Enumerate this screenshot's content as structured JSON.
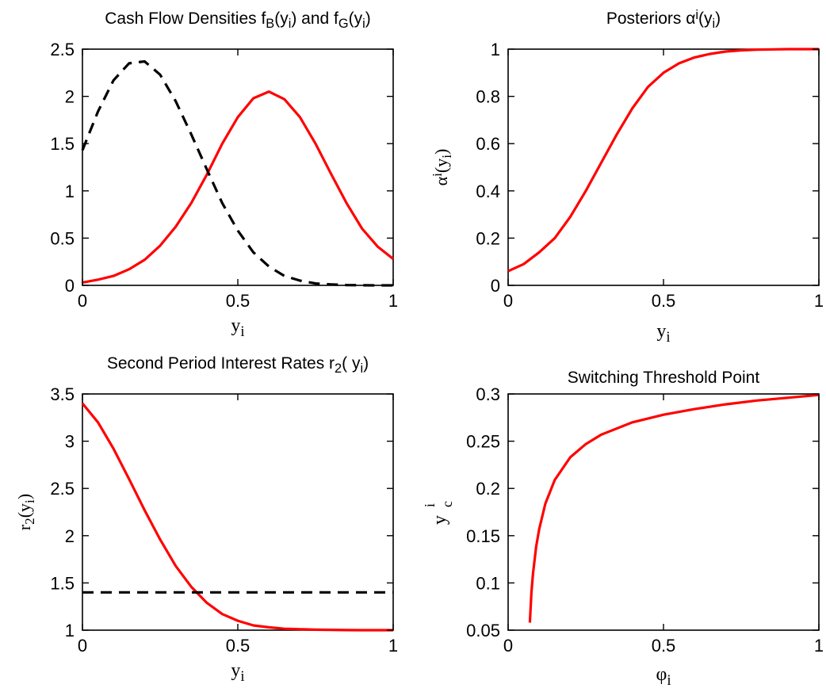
{
  "chart_data": [
    {
      "type": "line",
      "title": "Cash Flow Densities f_B(y_i) and f_G(y_i)",
      "title_parts": [
        "Cash Flow Densities f",
        "B",
        "(y",
        "i",
        ") and f",
        "G",
        "(y",
        "i",
        ")"
      ],
      "xlabel": "y_i",
      "xlabel_parts": [
        "y",
        "i"
      ],
      "ylabel": "",
      "xlim": [
        0,
        1
      ],
      "ylim": [
        0,
        2.5
      ],
      "xticks": [
        0,
        0.5,
        1
      ],
      "xtick_labels": [
        "0",
        "0.5",
        "1"
      ],
      "yticks": [
        0,
        0.5,
        1,
        1.5,
        2,
        2.5
      ],
      "ytick_labels": [
        "0",
        "0.5",
        "1",
        "1.5",
        "2",
        "2.5"
      ],
      "grid": false,
      "series": [
        {
          "style": "solid",
          "color": "#ff0000",
          "x": [
            0,
            0.05,
            0.1,
            0.15,
            0.2,
            0.25,
            0.3,
            0.35,
            0.4,
            0.45,
            0.5,
            0.55,
            0.6,
            0.65,
            0.7,
            0.75,
            0.8,
            0.85,
            0.9,
            0.95,
            1
          ],
          "y": [
            0.03,
            0.06,
            0.1,
            0.17,
            0.27,
            0.42,
            0.62,
            0.87,
            1.17,
            1.5,
            1.78,
            1.98,
            2.05,
            1.97,
            1.78,
            1.5,
            1.18,
            0.87,
            0.6,
            0.41,
            0.28
          ]
        },
        {
          "style": "dashed",
          "color": "#000000",
          "x": [
            0,
            0.05,
            0.1,
            0.15,
            0.2,
            0.25,
            0.3,
            0.35,
            0.4,
            0.45,
            0.5,
            0.55,
            0.6,
            0.65,
            0.7,
            0.75,
            0.8,
            0.85,
            0.9,
            0.95,
            1
          ],
          "y": [
            1.43,
            1.84,
            2.17,
            2.35,
            2.37,
            2.23,
            1.95,
            1.6,
            1.23,
            0.87,
            0.58,
            0.35,
            0.2,
            0.1,
            0.05,
            0.02,
            0.01,
            0.003,
            0.001,
            0,
            0
          ]
        }
      ]
    },
    {
      "type": "line",
      "title": "Posteriors α^i(y_i)",
      "title_parts": [
        "Posteriors α",
        "i",
        "(y",
        "i",
        ")"
      ],
      "xlabel": "y_i",
      "xlabel_parts": [
        "y",
        "i"
      ],
      "ylabel": "α^i(y_i)",
      "ylabel_parts": [
        "α",
        "i",
        "(y",
        "i",
        ")"
      ],
      "xlim": [
        0,
        1
      ],
      "ylim": [
        0,
        1
      ],
      "xticks": [
        0,
        0.5,
        1
      ],
      "xtick_labels": [
        "0",
        "0.5",
        "1"
      ],
      "yticks": [
        0,
        0.2,
        0.4,
        0.6,
        0.8,
        1
      ],
      "ytick_labels": [
        "0",
        "0.2",
        "0.4",
        "0.6",
        "0.8",
        "1"
      ],
      "grid": false,
      "series": [
        {
          "style": "solid",
          "color": "#ff0000",
          "x": [
            0,
            0.05,
            0.1,
            0.15,
            0.2,
            0.25,
            0.3,
            0.35,
            0.4,
            0.45,
            0.5,
            0.55,
            0.6,
            0.65,
            0.7,
            0.75,
            0.8,
            0.85,
            0.9,
            0.95,
            1
          ],
          "y": [
            0.06,
            0.09,
            0.14,
            0.2,
            0.29,
            0.4,
            0.52,
            0.64,
            0.75,
            0.84,
            0.9,
            0.94,
            0.965,
            0.98,
            0.99,
            0.995,
            0.998,
            0.999,
            1,
            1,
            1
          ]
        }
      ]
    },
    {
      "type": "line",
      "title": "Second Period Interest Rates r_2( y_i)",
      "title_parts": [
        "Second Period Interest Rates r",
        "2",
        "( y",
        "i",
        ")"
      ],
      "xlabel": "y_i",
      "xlabel_parts": [
        "y",
        "i"
      ],
      "ylabel": "r_2(y_i)",
      "ylabel_parts": [
        "r",
        "2",
        "(y",
        "i",
        ")"
      ],
      "xlim": [
        0,
        1
      ],
      "ylim": [
        1,
        3.5
      ],
      "xticks": [
        0,
        0.5,
        1
      ],
      "xtick_labels": [
        "0",
        "0.5",
        "1"
      ],
      "yticks": [
        1,
        1.5,
        2,
        2.5,
        3,
        3.5
      ],
      "ytick_labels": [
        "1",
        "1.5",
        "2",
        "2.5",
        "3",
        "3.5"
      ],
      "grid": false,
      "series": [
        {
          "style": "solid",
          "color": "#ff0000",
          "x": [
            0,
            0.05,
            0.1,
            0.15,
            0.2,
            0.25,
            0.3,
            0.35,
            0.4,
            0.45,
            0.5,
            0.55,
            0.6,
            0.65,
            0.7,
            0.75,
            0.8,
            0.85,
            0.9,
            0.95,
            1
          ],
          "y": [
            3.4,
            3.2,
            2.92,
            2.6,
            2.27,
            1.96,
            1.68,
            1.46,
            1.29,
            1.17,
            1.1,
            1.05,
            1.03,
            1.015,
            1.01,
            1.005,
            1.003,
            1.001,
            1,
            1,
            1
          ]
        },
        {
          "style": "dashed",
          "color": "#000000",
          "x": [
            0,
            1
          ],
          "y": [
            1.4,
            1.4
          ]
        }
      ]
    },
    {
      "type": "line",
      "title": "Switching Threshold Point",
      "title_parts": [
        "Switching Threshold Point"
      ],
      "xlabel": "φ_i",
      "xlabel_parts": [
        "φ",
        "i"
      ],
      "ylabel": "y^i_c",
      "ylabel_parts": [
        "y",
        "c",
        "i"
      ],
      "xlim": [
        0,
        1
      ],
      "ylim": [
        0.05,
        0.3
      ],
      "xticks": [
        0,
        0.5,
        1
      ],
      "xtick_labels": [
        "0",
        "0.5",
        "1"
      ],
      "yticks": [
        0.05,
        0.1,
        0.15,
        0.2,
        0.25,
        0.3
      ],
      "ytick_labels": [
        "0.05",
        "0.1",
        "0.15",
        "0.2",
        "0.25",
        "0.3"
      ],
      "grid": false,
      "series": [
        {
          "style": "solid",
          "color": "#ff0000",
          "x": [
            0.07,
            0.075,
            0.08,
            0.09,
            0.1,
            0.12,
            0.15,
            0.2,
            0.25,
            0.3,
            0.4,
            0.5,
            0.6,
            0.7,
            0.8,
            0.9,
            1
          ],
          "y": [
            0.058,
            0.09,
            0.11,
            0.138,
            0.157,
            0.184,
            0.209,
            0.233,
            0.247,
            0.257,
            0.27,
            0.278,
            0.284,
            0.289,
            0.293,
            0.296,
            0.299
          ]
        }
      ]
    }
  ]
}
